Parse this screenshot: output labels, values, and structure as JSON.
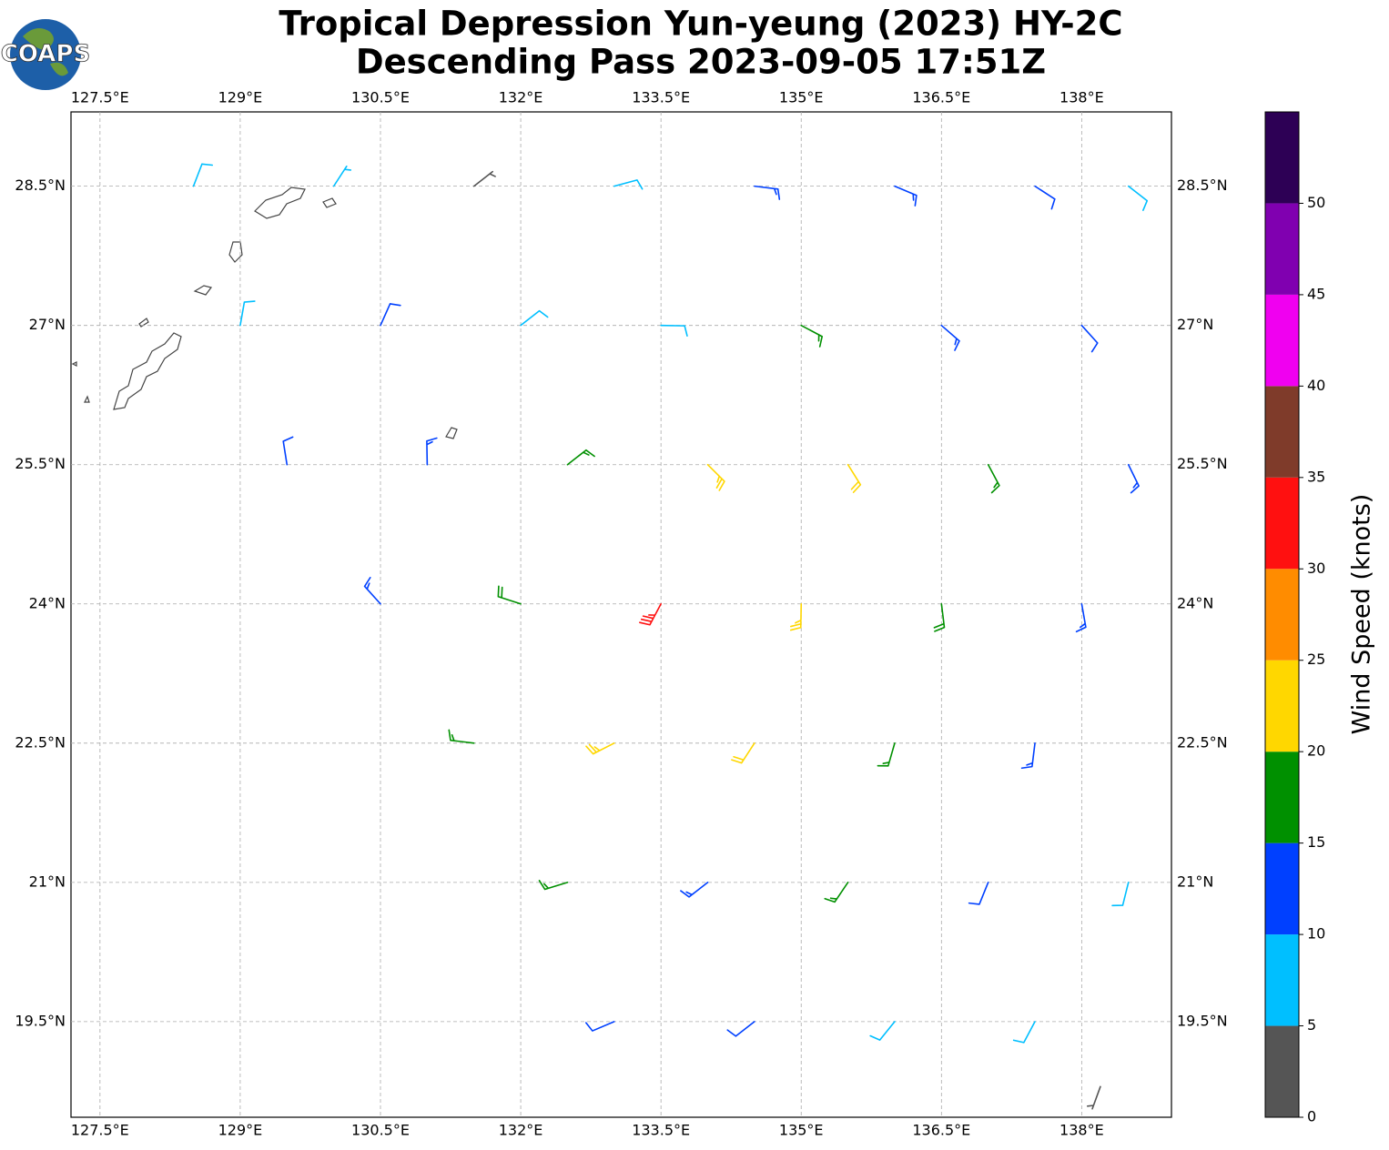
{
  "chart_data": {
    "type": "wind_barbs",
    "logo_text": "COAPS",
    "title": "Tropical Depression Yun-yeung (2023) HY-2C",
    "subtitle": "Descending Pass 2023-09-05 17:51Z",
    "xlim": [
      127.19,
      138.96
    ],
    "ylim": [
      18.47,
      29.3
    ],
    "xticks": [
      {
        "value": 127.5,
        "label": "127.5°E"
      },
      {
        "value": 129,
        "label": "129°E"
      },
      {
        "value": 130.5,
        "label": "130.5°E"
      },
      {
        "value": 132,
        "label": "132°E"
      },
      {
        "value": 133.5,
        "label": "133.5°E"
      },
      {
        "value": 135,
        "label": "135°E"
      },
      {
        "value": 136.5,
        "label": "136.5°E"
      },
      {
        "value": 138,
        "label": "138°E"
      }
    ],
    "yticks": [
      {
        "value": 19.5,
        "label": "19.5°N"
      },
      {
        "value": 21,
        "label": "21°N"
      },
      {
        "value": 22.5,
        "label": "22.5°N"
      },
      {
        "value": 24,
        "label": "24°N"
      },
      {
        "value": 25.5,
        "label": "25.5°N"
      },
      {
        "value": 27,
        "label": "27°N"
      },
      {
        "value": 28.5,
        "label": "28.5°N"
      }
    ],
    "grid": true,
    "barbs": {
      "lon": [
        128.5,
        130,
        131.5,
        133,
        134.5,
        136,
        137.5,
        138.5,
        129,
        130.5,
        132,
        133.5,
        135,
        136.5,
        138,
        129.5,
        131,
        132.5,
        134,
        135.5,
        137,
        138.5,
        130.5,
        132,
        133.5,
        135,
        136.5,
        138,
        131.5,
        133,
        134.5,
        136,
        137.5,
        132.5,
        134,
        135.5,
        137,
        138.5,
        133,
        134.5,
        136,
        137.5,
        138.2
      ],
      "lat": [
        28.5,
        28.5,
        28.5,
        28.5,
        28.5,
        28.5,
        28.5,
        28.5,
        27,
        27,
        27,
        27,
        27,
        27,
        27,
        25.5,
        25.5,
        25.5,
        25.5,
        25.5,
        25.5,
        25.5,
        24,
        24,
        24,
        24,
        24,
        24,
        22.5,
        22.5,
        22.5,
        22.5,
        22.5,
        21,
        21,
        21,
        21,
        21,
        19.5,
        19.5,
        19.5,
        19.5,
        18.8
      ],
      "speed": [
        8,
        7,
        3,
        8,
        13,
        14,
        12,
        8,
        8,
        11,
        8,
        9,
        17,
        14,
        12,
        12,
        13,
        17,
        24,
        22,
        17,
        13,
        14,
        18,
        34,
        24,
        18,
        14,
        17,
        24,
        22,
        17,
        13,
        16,
        14,
        16,
        12,
        8,
        12,
        12,
        8,
        8,
        3
      ],
      "dir": [
        21,
        33,
        52,
        75,
        97,
        113,
        123,
        128,
        10,
        24,
        52,
        91,
        118,
        131,
        138,
        351,
        359,
        52,
        135,
        148,
        152,
        154,
        318,
        288,
        208,
        181,
        173,
        170,
        277,
        243,
        213,
        196,
        187,
        253,
        232,
        214,
        202,
        194,
        247,
        232,
        219,
        208,
        200
      ]
    },
    "colorbar": {
      "label": "Wind Speed (knots)",
      "bounds": [
        0,
        5,
        10,
        15,
        20,
        25,
        30,
        35,
        40,
        45,
        50,
        55
      ],
      "colors": [
        "#555555",
        "#00bfff",
        "#0040ff",
        "#009000",
        "#ffd700",
        "#ff8c00",
        "#ff1010",
        "#7f3b2a",
        "#f000f0",
        "#8000b0",
        "#2d0055"
      ],
      "ticks": [
        0,
        5,
        10,
        15,
        20,
        25,
        30,
        35,
        40,
        45,
        50
      ]
    }
  }
}
